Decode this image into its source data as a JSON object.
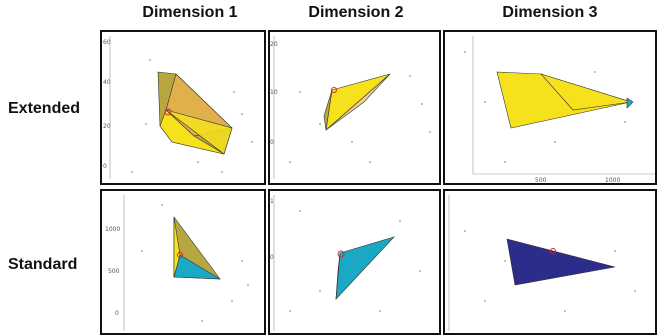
{
  "columns": [
    "Dimension 1",
    "Dimension 2",
    "Dimension 3"
  ],
  "rows": [
    "Extended",
    "Standard"
  ],
  "ticks": {
    "ext_d1_y": [
      "60",
      "40",
      "20",
      "0"
    ],
    "ext_d2_y": [
      "20",
      "10",
      "0"
    ],
    "ext_d3_x": [
      "500",
      "1000"
    ],
    "std_d1_y": [
      "1000",
      "500",
      "0"
    ],
    "std_d2_y": [
      "1",
      "0"
    ]
  },
  "colors": {
    "yellow": "#f5e11c",
    "olive": "#b8a640",
    "orange": "#e0b04a",
    "teal": "#1aa8c4",
    "navy": "#2c2c8a",
    "marker": "#e02020",
    "points": "#44cc44"
  }
}
